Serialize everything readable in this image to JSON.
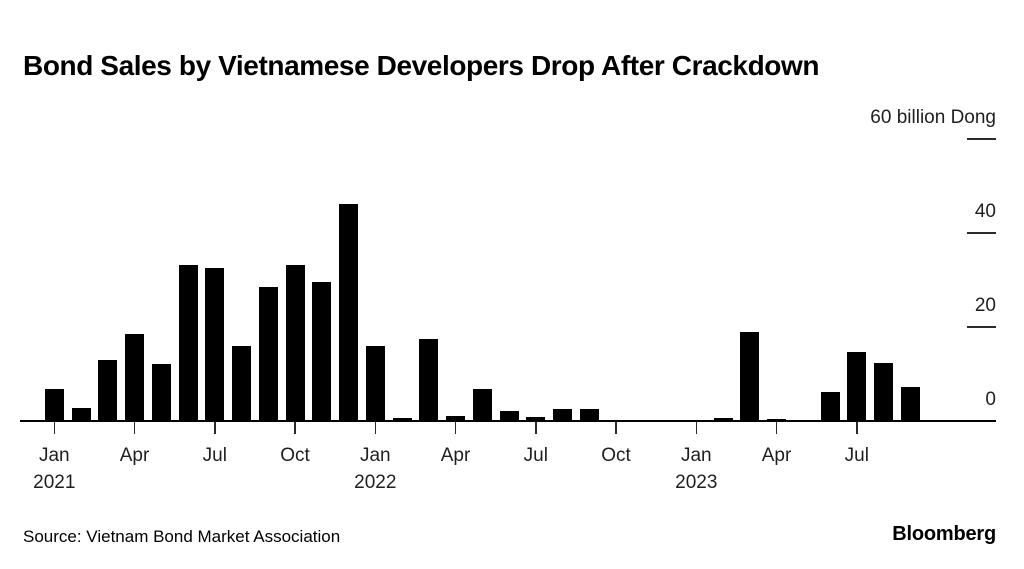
{
  "title": "Bond Sales by Vietnamese Developers Drop After Crackdown",
  "source": "Source: Vietnam Bond Market Association",
  "brand": "Bloomberg",
  "chart_data": {
    "type": "bar",
    "title": "Bond Sales by Vietnamese Developers Drop After Crackdown",
    "ylabel": "billion Dong",
    "ylim": [
      0,
      60
    ],
    "grid": false,
    "bar_color": "#000000",
    "axis_color": "#000000",
    "y_axis_side": "right",
    "categories": [
      "Jan 2021",
      "Feb 2021",
      "Mar 2021",
      "Apr 2021",
      "May 2021",
      "Jun 2021",
      "Jul 2021",
      "Aug 2021",
      "Sep 2021",
      "Oct 2021",
      "Nov 2021",
      "Dec 2021",
      "Jan 2022",
      "Feb 2022",
      "Mar 2022",
      "Apr 2022",
      "May 2022",
      "Jun 2022",
      "Jul 2022",
      "Aug 2022",
      "Sep 2022",
      "Oct 2022",
      "Nov 2022",
      "Dec 2022",
      "Jan 2023",
      "Feb 2023",
      "Mar 2023",
      "Apr 2023",
      "May 2023",
      "Jun 2023",
      "Jul 2023",
      "Aug 2023",
      "Sep 2023"
    ],
    "values": [
      6.8,
      2.7,
      12.8,
      18.5,
      12.0,
      33.0,
      32.5,
      15.9,
      28.3,
      33.0,
      29.5,
      46.0,
      15.9,
      0.5,
      17.3,
      0.9,
      6.7,
      2.0,
      0.7,
      2.4,
      2.4,
      0.2,
      0.15,
      0.15,
      0.15,
      0.5,
      18.8,
      0.3,
      0.15,
      6.0,
      14.5,
      12.3,
      7.2
    ],
    "y_ticks": [
      {
        "value": 0,
        "label": "0",
        "dash": false
      },
      {
        "value": 20,
        "label": "20",
        "dash": true
      },
      {
        "value": 40,
        "label": "40",
        "dash": true
      },
      {
        "value": 60,
        "label": "60 billion Dong",
        "dash": true
      }
    ],
    "x_ticks": [
      {
        "index": 0,
        "label": "Jan",
        "year": "2021"
      },
      {
        "index": 3,
        "label": "Apr"
      },
      {
        "index": 6,
        "label": "Jul"
      },
      {
        "index": 9,
        "label": "Oct"
      },
      {
        "index": 12,
        "label": "Jan",
        "year": "2022"
      },
      {
        "index": 15,
        "label": "Apr"
      },
      {
        "index": 18,
        "label": "Jul"
      },
      {
        "index": 21,
        "label": "Oct"
      },
      {
        "index": 24,
        "label": "Jan",
        "year": "2023"
      },
      {
        "index": 27,
        "label": "Apr"
      },
      {
        "index": 30,
        "label": "Jul"
      }
    ]
  }
}
